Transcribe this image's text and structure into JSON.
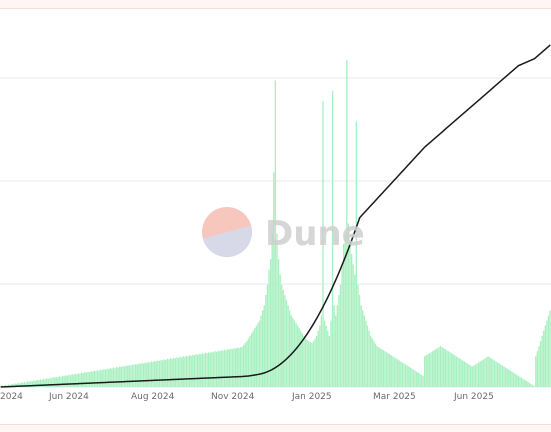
{
  "watermark": {
    "brand": "Dune"
  },
  "chart_data": {
    "type": "bar+line",
    "title": "",
    "xlabel": "",
    "ylabel": "",
    "x_tick_labels": [
      "2024",
      "Jun 2024",
      "Aug 2024",
      "Nov 2024",
      "Jan 2025",
      "Mar 2025",
      "Jun 2025"
    ],
    "grid": true,
    "y_axis_labels_visible": false,
    "series": [
      {
        "type": "bar",
        "color": "#a8f0c0",
        "values": [
          2,
          3,
          2,
          4,
          3,
          5,
          4,
          6,
          5,
          7,
          6,
          8,
          7,
          9,
          8,
          10,
          9,
          11,
          10,
          12,
          11,
          13,
          12,
          14,
          13,
          15,
          14,
          16,
          15,
          17,
          16,
          18,
          17,
          19,
          18,
          20,
          19,
          21,
          20,
          22,
          21,
          23,
          22,
          24,
          23,
          25,
          24,
          26,
          25,
          27,
          26,
          28,
          27,
          29,
          28,
          30,
          29,
          31,
          30,
          32,
          31,
          33,
          32,
          34,
          33,
          35,
          34,
          36,
          35,
          37,
          36,
          38,
          37,
          39,
          38,
          40,
          39,
          41,
          40,
          42,
          41,
          43,
          42,
          44,
          43,
          45,
          44,
          46,
          45,
          47,
          46,
          48,
          47,
          49,
          48,
          50,
          49,
          51,
          50,
          52,
          51,
          53,
          52,
          54,
          53,
          55,
          54,
          56,
          55,
          57,
          56,
          58,
          57,
          59,
          58,
          60,
          59,
          61,
          60,
          62,
          61,
          63,
          62,
          64,
          63,
          65,
          64,
          66,
          65,
          67,
          66,
          68,
          67,
          69,
          68,
          70,
          69,
          71,
          70,
          72,
          71,
          73,
          72,
          74,
          73,
          75,
          74,
          76,
          75,
          77,
          76,
          78,
          78,
          82,
          86,
          90,
          95,
          100,
          105,
          110,
          115,
          120,
          125,
          130,
          140,
          150,
          160,
          180,
          200,
          230,
          250,
          300,
          420,
          600,
          300,
          250,
          220,
          200,
          190,
          180,
          170,
          160,
          150,
          140,
          135,
          130,
          125,
          120,
          115,
          110,
          105,
          100,
          95,
          92,
          90,
          88,
          86,
          90,
          95,
          100,
          110,
          120,
          140,
          560,
          130,
          120,
          110,
          100,
          130,
          580,
          160,
          140,
          160,
          180,
          200,
          240,
          280,
          300,
          640,
          320,
          280,
          260,
          240,
          220,
          520,
          200,
          180,
          160,
          150,
          140,
          130,
          120,
          110,
          100,
          95,
          90,
          85,
          80,
          78,
          76,
          74,
          72,
          70,
          68,
          66,
          64,
          62,
          60,
          58,
          56,
          54,
          52,
          50,
          48,
          46,
          44,
          42,
          40,
          38,
          36,
          34,
          32,
          30,
          28,
          26,
          24,
          22,
          60,
          62,
          64,
          66,
          68,
          70,
          72,
          74,
          76,
          78,
          80,
          78,
          76,
          74,
          72,
          70,
          68,
          66,
          64,
          62,
          60,
          58,
          56,
          54,
          52,
          50,
          48,
          46,
          44,
          42,
          40,
          42,
          44,
          46,
          48,
          50,
          52,
          54,
          56,
          58,
          60,
          58,
          56,
          54,
          52,
          50,
          48,
          46,
          44,
          42,
          40,
          38,
          36,
          34,
          32,
          30,
          28,
          26,
          24,
          22,
          20,
          18,
          16,
          14,
          12,
          10,
          8,
          6,
          4,
          2,
          60,
          70,
          80,
          90,
          100,
          110,
          120,
          130,
          140,
          150
        ]
      },
      {
        "type": "line",
        "color": "#1a1a1a",
        "values": [
          0,
          1,
          2,
          3,
          4,
          5,
          6,
          7,
          8,
          9,
          10,
          11,
          12,
          13,
          14,
          15,
          16,
          17,
          18,
          19,
          20,
          21,
          22,
          23,
          24,
          25,
          26,
          27,
          28,
          29,
          30,
          31,
          32,
          33,
          34,
          35,
          36,
          37,
          38,
          39,
          40,
          41,
          42,
          43,
          44,
          45,
          46,
          47,
          48,
          49,
          50,
          51,
          52,
          53,
          54,
          55,
          56,
          57,
          58,
          59,
          60,
          61,
          62,
          63,
          64,
          65,
          66,
          67,
          68,
          69,
          70,
          71,
          72,
          73,
          74,
          75,
          76,
          77,
          78,
          79,
          80,
          81,
          82,
          83,
          84,
          85,
          86,
          87,
          88,
          89,
          90,
          91,
          92,
          93,
          94,
          95,
          96,
          97,
          98,
          99,
          100,
          101,
          102,
          103,
          104,
          105,
          106,
          107,
          108,
          109,
          110,
          111,
          112,
          113,
          114,
          115,
          116,
          117,
          118,
          119,
          120,
          121,
          122,
          123,
          124,
          125,
          126,
          127,
          128,
          129,
          130,
          131,
          132,
          133,
          134,
          135,
          136,
          137,
          138,
          139,
          140,
          141,
          142,
          143,
          144,
          145,
          146,
          147,
          148,
          149,
          150,
          151,
          152,
          154,
          156,
          158,
          160,
          163,
          166,
          170,
          174,
          178,
          182,
          187,
          192,
          198,
          205,
          213,
          222,
          232,
          243,
          255,
          268,
          282,
          297,
          313,
          330,
          348,
          367,
          387,
          408,
          430,
          453,
          477,
          502,
          528,
          555,
          583,
          612,
          642,
          673,
          705,
          738,
          772,
          807,
          843,
          880,
          918,
          957,
          997,
          1038,
          1080,
          1123,
          1167,
          1212,
          1258,
          1305,
          1353,
          1402,
          1452,
          1503,
          1555,
          1608,
          1662,
          1717,
          1773,
          1830,
          1888,
          1947,
          2007,
          2068,
          2130,
          2193,
          2257,
          2322,
          2388,
          2455,
          2480,
          2505,
          2530,
          2555,
          2580,
          2605,
          2630,
          2655,
          2680,
          2705,
          2730,
          2755,
          2780,
          2805,
          2830,
          2855,
          2880,
          2905,
          2930,
          2955,
          2980,
          3005,
          3030,
          3055,
          3080,
          3105,
          3130,
          3155,
          3180,
          3205,
          3230,
          3255,
          3280,
          3305,
          3330,
          3355,
          3380,
          3405,
          3430,
          3455,
          3480,
          3500,
          3520,
          3540,
          3560,
          3580,
          3600,
          3620,
          3640,
          3660,
          3680,
          3700,
          3720,
          3740,
          3760,
          3780,
          3800,
          3820,
          3840,
          3860,
          3880,
          3900,
          3920,
          3940,
          3960,
          3980,
          4000,
          4020,
          4040,
          4060,
          4080,
          4100,
          4120,
          4140,
          4160,
          4180,
          4200,
          4220,
          4240,
          4260,
          4280,
          4300,
          4320,
          4340,
          4360,
          4380,
          4400,
          4420,
          4440,
          4460,
          4480,
          4500,
          4520,
          4540,
          4560,
          4580,
          4600,
          4620,
          4640,
          4660,
          4670,
          4680,
          4690,
          4700,
          4710,
          4720,
          4730,
          4740,
          4750,
          4760,
          4780,
          4800,
          4820,
          4840,
          4860,
          4880,
          4900,
          4920,
          4940,
          4960
        ]
      }
    ]
  }
}
